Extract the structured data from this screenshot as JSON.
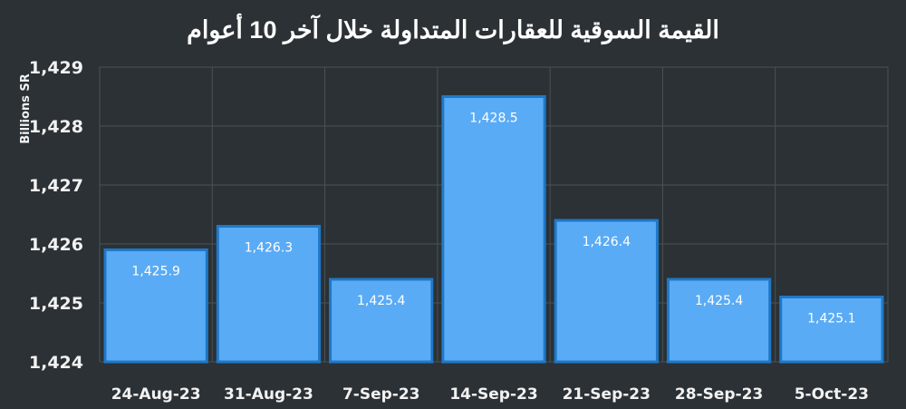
{
  "chart_data": {
    "type": "bar",
    "title": "القيمة السوقية للعقارات المتداولة خلال آخر 10 أعوام",
    "xlabel": "",
    "ylabel": "Billions SR",
    "ylim": [
      1424,
      1429
    ],
    "yticks": [
      "1,424",
      "1,425",
      "1,426",
      "1,427",
      "1,428",
      "1,429"
    ],
    "grid": true,
    "categories": [
      "24-Aug-23",
      "31-Aug-23",
      "7-Sep-23",
      "14-Sep-23",
      "21-Sep-23",
      "28-Sep-23",
      "5-Oct-23"
    ],
    "values": [
      1425.9,
      1426.3,
      1425.4,
      1428.5,
      1426.4,
      1425.4,
      1425.1
    ],
    "data_labels": [
      "1,425.9",
      "1,426.3",
      "1,425.4",
      "1,428.5",
      "1,426.4",
      "1,425.4",
      "1,425.1"
    ],
    "colors": {
      "bar": "#5aabf5",
      "bar_border": "#1f78c8",
      "background": "#2b3135",
      "grid": "#4a5257"
    }
  }
}
